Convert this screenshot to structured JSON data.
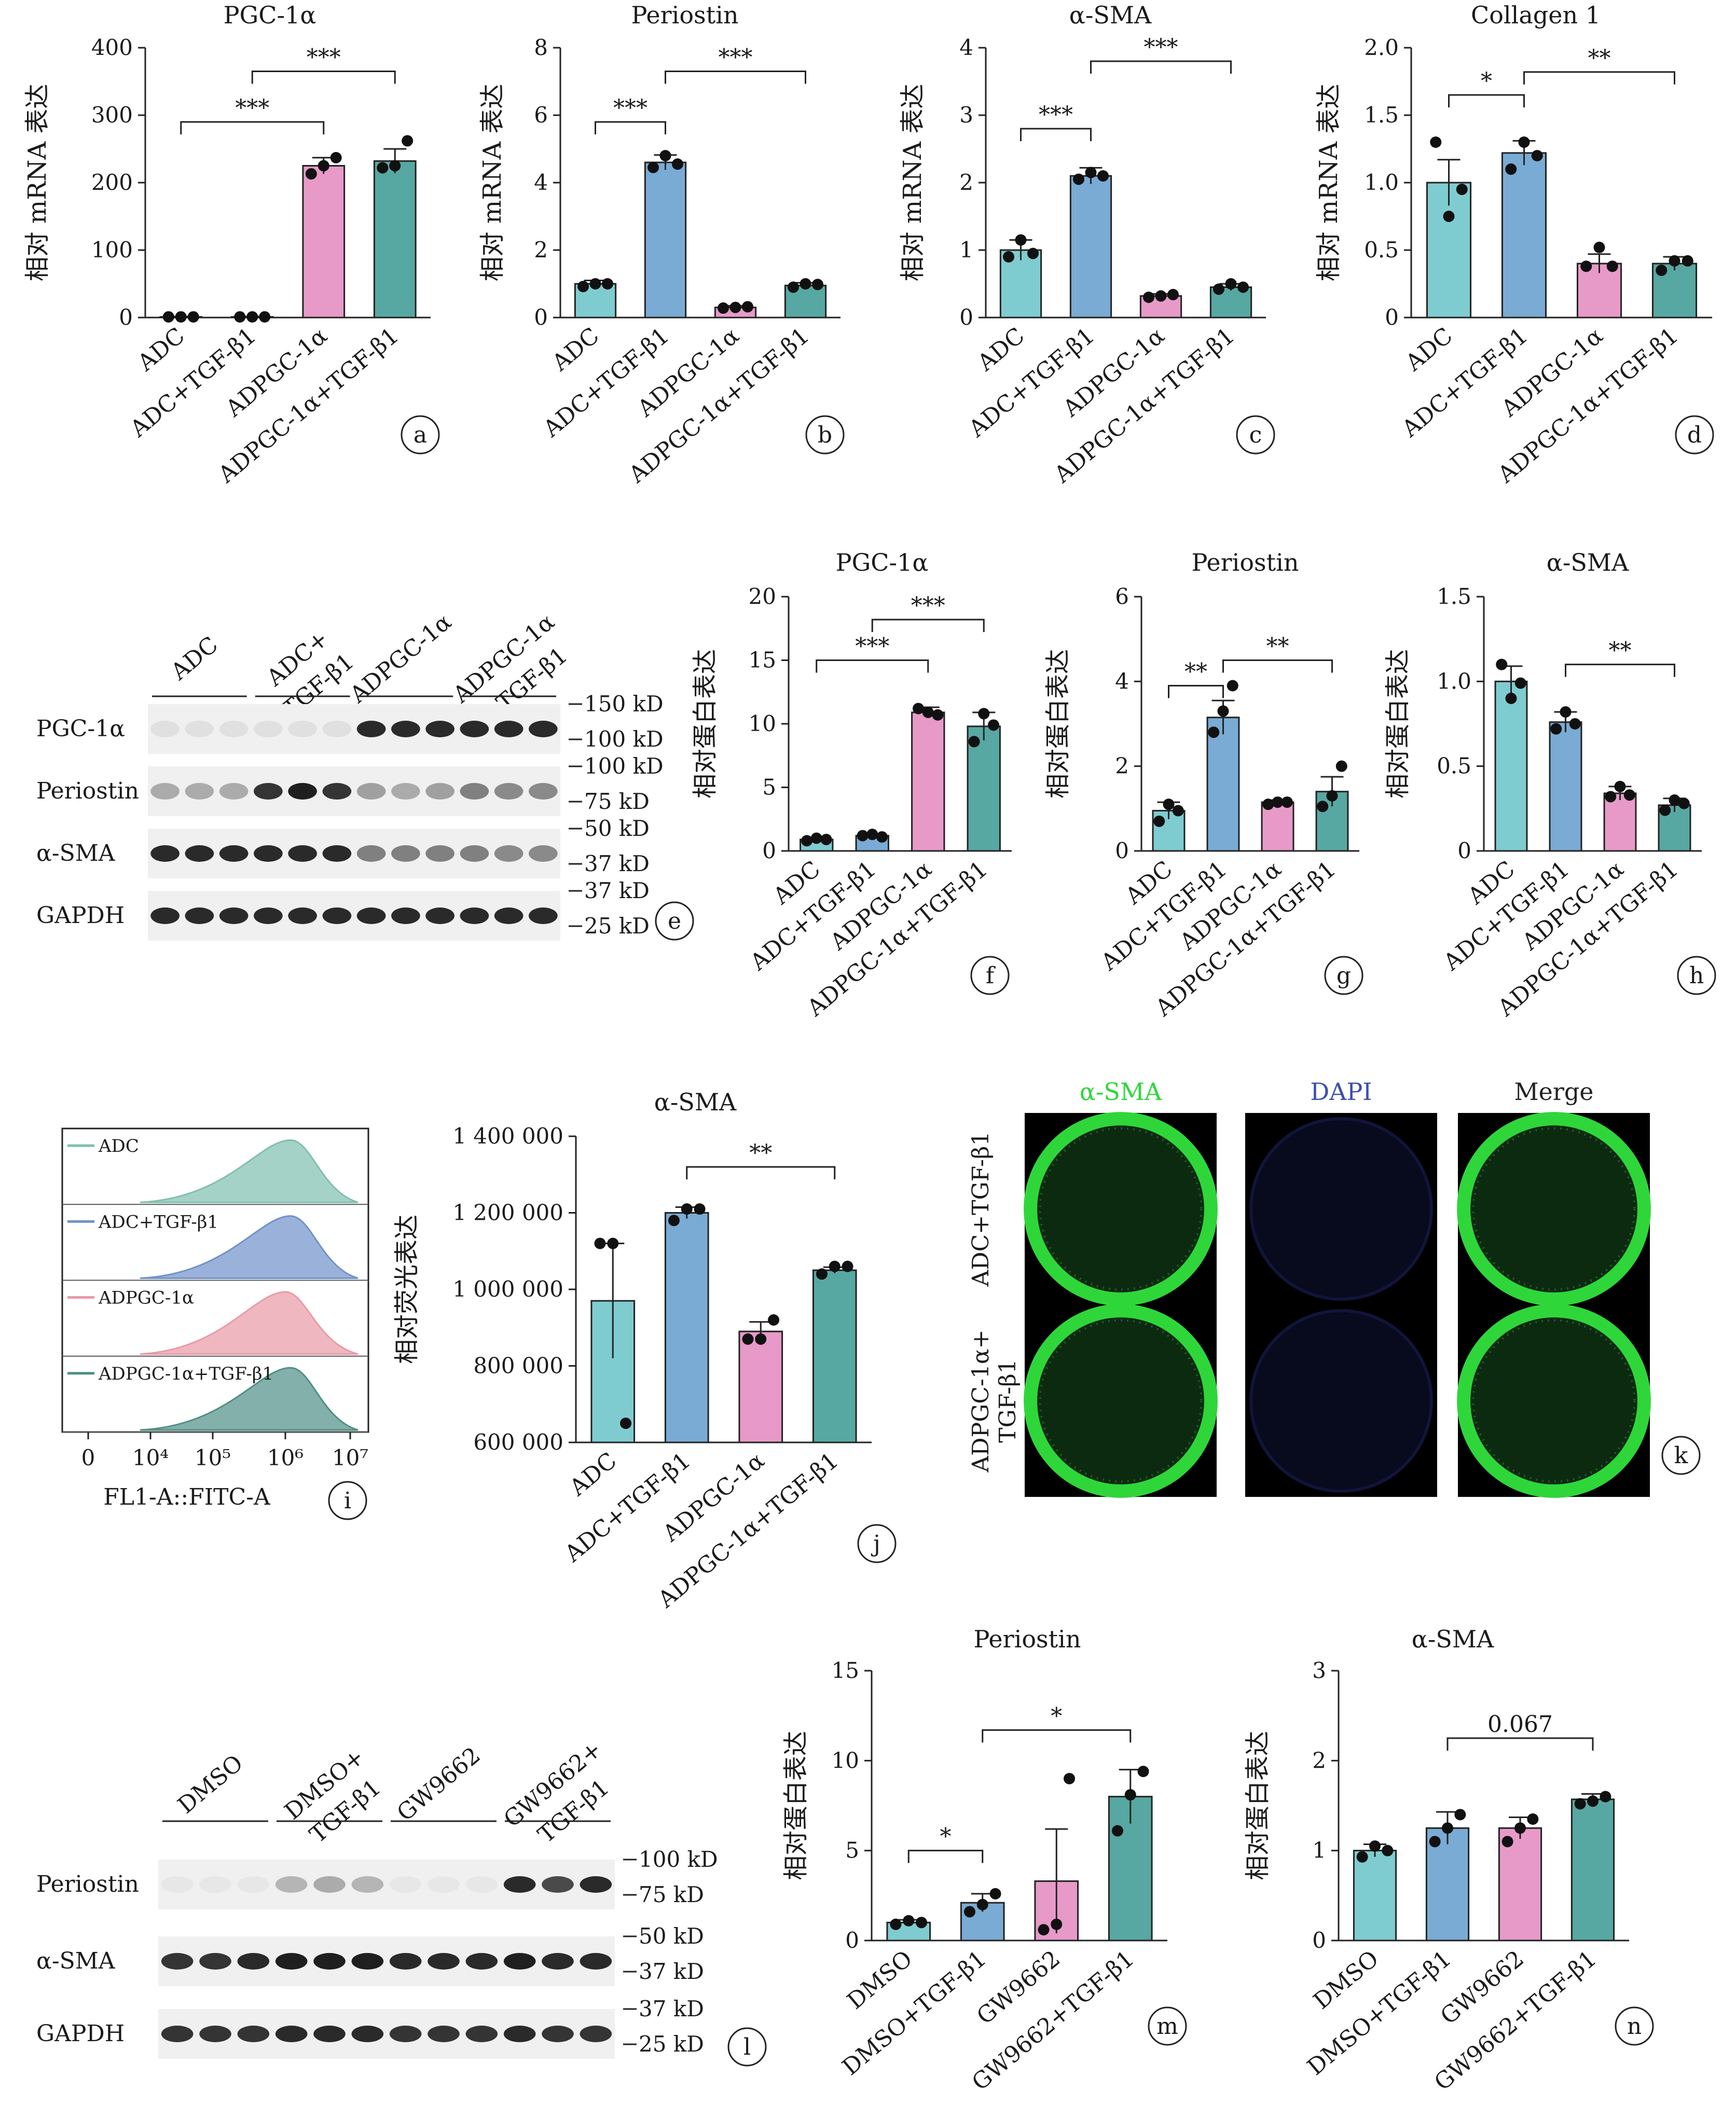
{
  "colors": {
    "ADC": "#7fccd0",
    "ADC+TGF-β1": "#79abd4",
    "ADPGC-1α": "#e79ac8",
    "ADPGC-1α+TGF-β1": "#57a8a2",
    "if_green": "#2fd63a",
    "dapi_blue": "#3a4fae"
  },
  "groups4": [
    "ADC",
    "ADC+TGF-β1",
    "ADPGC-1α",
    "ADPGC-1α+TGF-β1"
  ],
  "chart_data": [
    {
      "id": "a",
      "type": "bar",
      "title": "PGC-1α",
      "ylabel": "相对 mRNA 表达",
      "categories": [
        "ADC",
        "ADC+TGF-β1",
        "ADPGC-1α",
        "ADPGC-1α+TGF-β1"
      ],
      "values": [
        1,
        1,
        225,
        232
      ],
      "errors": [
        0.5,
        0.5,
        12,
        18
      ],
      "points": [
        [
          1,
          1,
          1
        ],
        [
          1,
          1,
          1
        ],
        [
          213,
          225,
          237
        ],
        [
          222,
          225,
          262
        ]
      ],
      "ylim": [
        0,
        400
      ],
      "yticks": [
        "0",
        "100",
        "200",
        "300",
        "400"
      ],
      "yticknums": [
        0,
        100,
        200,
        300,
        400
      ],
      "brackets": [
        {
          "from": 0,
          "to": 2,
          "y": 290,
          "label": "***"
        },
        {
          "from": 1,
          "to": 3,
          "y": 365,
          "label": "***"
        }
      ],
      "panel": "a"
    },
    {
      "id": "b",
      "type": "bar",
      "title": "Periostin",
      "ylabel": "相对 mRNA 表达",
      "categories": [
        "ADC",
        "ADC+TGF-β1",
        "ADPGC-1α",
        "ADPGC-1α+TGF-β1"
      ],
      "values": [
        1,
        4.6,
        0.3,
        0.95
      ],
      "errors": [
        0.1,
        0.22,
        0.05,
        0.08
      ],
      "points": [
        [
          0.92,
          1.0,
          1.0
        ],
        [
          4.45,
          4.8,
          4.55
        ],
        [
          0.28,
          0.3,
          0.32
        ],
        [
          0.9,
          1.0,
          0.98
        ]
      ],
      "ylim": [
        0,
        8
      ],
      "yticks": [
        "0",
        "2",
        "4",
        "6",
        "8"
      ],
      "yticknums": [
        0,
        2,
        4,
        6,
        8
      ],
      "brackets": [
        {
          "from": 0,
          "to": 1,
          "y": 5.8,
          "label": "***"
        },
        {
          "from": 1,
          "to": 3,
          "y": 7.3,
          "label": "***"
        }
      ],
      "panel": "b"
    },
    {
      "id": "c",
      "type": "bar",
      "title": "α-SMA",
      "ylabel": "相对 mRNA 表达",
      "categories": [
        "ADC",
        "ADC+TGF-β1",
        "ADPGC-1α",
        "ADPGC-1α+TGF-β1"
      ],
      "values": [
        1,
        2.1,
        0.32,
        0.45
      ],
      "errors": [
        0.15,
        0.12,
        0.03,
        0.05
      ],
      "points": [
        [
          0.9,
          1.15,
          0.95
        ],
        [
          2.05,
          2.15,
          2.1
        ],
        [
          0.3,
          0.32,
          0.34
        ],
        [
          0.42,
          0.5,
          0.45
        ]
      ],
      "ylim": [
        0,
        4
      ],
      "yticks": [
        "0",
        "1",
        "2",
        "3",
        "4"
      ],
      "yticknums": [
        0,
        1,
        2,
        3,
        4
      ],
      "brackets": [
        {
          "from": 0,
          "to": 1,
          "y": 2.8,
          "label": "***"
        },
        {
          "from": 1,
          "to": 3,
          "y": 3.8,
          "label": "***"
        }
      ],
      "panel": "c"
    },
    {
      "id": "d",
      "type": "bar",
      "title": "Collagen 1",
      "ylabel": "相对 mRNA 表达",
      "categories": [
        "ADC",
        "ADC+TGF-β1",
        "ADPGC-1α",
        "ADPGC-1α+TGF-β1"
      ],
      "values": [
        1,
        1.22,
        0.4,
        0.4
      ],
      "errors": [
        0.17,
        0.09,
        0.07,
        0.05
      ],
      "points": [
        [
          1.3,
          0.75,
          0.95
        ],
        [
          1.1,
          1.3,
          1.2
        ],
        [
          0.38,
          0.52,
          0.38
        ],
        [
          0.35,
          0.42,
          0.42
        ]
      ],
      "ylim": [
        0,
        2
      ],
      "yticks": [
        "0",
        "0.5",
        "1.0",
        "1.5",
        "2.0"
      ],
      "yticknums": [
        0,
        0.5,
        1,
        1.5,
        2
      ],
      "brackets": [
        {
          "from": 0,
          "to": 1,
          "y": 1.65,
          "label": "*"
        },
        {
          "from": 1,
          "to": 3,
          "y": 1.82,
          "label": "**"
        }
      ],
      "panel": "d"
    },
    {
      "id": "f",
      "type": "bar",
      "title": "PGC-1α",
      "ylabel": "相对蛋白表达",
      "categories": [
        "ADC",
        "ADC+TGF-β1",
        "ADPGC-1α",
        "ADPGC-1α+TGF-β1"
      ],
      "values": [
        0.9,
        1.2,
        10.9,
        9.8
      ],
      "errors": [
        0.15,
        0.15,
        0.4,
        1.1
      ],
      "points": [
        [
          0.8,
          1.0,
          0.9
        ],
        [
          1.2,
          1.3,
          1.1
        ],
        [
          11.2,
          10.9,
          10.7
        ],
        [
          8.6,
          10.8,
          9.9
        ]
      ],
      "ylim": [
        0,
        20
      ],
      "yticks": [
        "0",
        "5",
        "10",
        "15",
        "20"
      ],
      "yticknums": [
        0,
        5,
        10,
        15,
        20
      ],
      "brackets": [
        {
          "from": 0,
          "to": 2,
          "y": 15,
          "label": "***"
        },
        {
          "from": 1,
          "to": 3,
          "y": 18.2,
          "label": "***"
        }
      ],
      "panel": "f"
    },
    {
      "id": "g",
      "type": "bar",
      "title": "Periostin",
      "ylabel": "相对蛋白表达",
      "categories": [
        "ADC",
        "ADC+TGF-β1",
        "ADPGC-1α",
        "ADPGC-1α+TGF-β1"
      ],
      "values": [
        0.95,
        3.15,
        1.15,
        1.4
      ],
      "errors": [
        0.2,
        0.4,
        0.05,
        0.35
      ],
      "points": [
        [
          0.7,
          1.1,
          0.95
        ],
        [
          2.8,
          3.3,
          3.9
        ],
        [
          1.1,
          1.15,
          1.15
        ],
        [
          1.05,
          1.3,
          2.0
        ]
      ],
      "ylim": [
        0,
        6
      ],
      "yticks": [
        "0",
        "2",
        "4",
        "6"
      ],
      "yticknums": [
        0,
        2,
        4,
        6
      ],
      "brackets": [
        {
          "from": 0,
          "to": 1,
          "y": 3.9,
          "label": "**"
        },
        {
          "from": 1,
          "to": 3,
          "y": 4.5,
          "label": "**"
        }
      ],
      "panel": "g"
    },
    {
      "id": "h",
      "type": "bar",
      "title": "α-SMA",
      "ylabel": "相对蛋白表达",
      "categories": [
        "ADC",
        "ADC+TGF-β1",
        "ADPGC-1α",
        "ADPGC-1α+TGF-β1"
      ],
      "values": [
        1.0,
        0.76,
        0.34,
        0.27
      ],
      "errors": [
        0.09,
        0.06,
        0.04,
        0.04
      ],
      "points": [
        [
          1.1,
          0.9,
          0.99
        ],
        [
          0.72,
          0.82,
          0.75
        ],
        [
          0.32,
          0.38,
          0.33
        ],
        [
          0.24,
          0.3,
          0.28
        ]
      ],
      "ylim": [
        0,
        1.5
      ],
      "yticks": [
        "0",
        "0.5",
        "1.0",
        "1.5"
      ],
      "yticknums": [
        0,
        0.5,
        1,
        1.5
      ],
      "brackets": [
        {
          "from": 1,
          "to": 3,
          "y": 1.1,
          "label": "**"
        }
      ],
      "panel": "h"
    },
    {
      "id": "j",
      "type": "bar",
      "title": "α-SMA",
      "ylabel": "相对荧光表达",
      "categories": [
        "ADC",
        "ADC+TGF-β1",
        "ADPGC-1α",
        "ADPGC-1α+TGF-β1"
      ],
      "values": [
        970000,
        1200000,
        890000,
        1050000
      ],
      "errors": [
        150000,
        15000,
        25000,
        8000
      ],
      "points": [
        [
          1120000,
          1120000,
          650000
        ],
        [
          1180000,
          1210000,
          1210000
        ],
        [
          870000,
          870000,
          920000
        ],
        [
          1040000,
          1060000,
          1060000
        ]
      ],
      "ylim": [
        600000,
        1400000
      ],
      "yticks": [
        "600 000",
        "800 000",
        "1 000 000",
        "1 200 000",
        "1 400 000"
      ],
      "yticknums": [
        600000,
        800000,
        1000000,
        1200000,
        1400000
      ],
      "brackets": [
        {
          "from": 1,
          "to": 3,
          "y": 1320000,
          "label": "**"
        }
      ],
      "panel": "j"
    },
    {
      "id": "m",
      "type": "bar",
      "title": "Periostin",
      "ylabel": "相对蛋白表达",
      "categories": [
        "DMSO",
        "DMSO+TGF-β1",
        "GW9662",
        "GW9662+TGF-β1"
      ],
      "values": [
        1.0,
        2.1,
        3.3,
        8.0
      ],
      "errors": [
        0.15,
        0.5,
        2.9,
        1.5
      ],
      "points": [
        [
          0.9,
          1.1,
          1.0
        ],
        [
          1.6,
          2.0,
          2.6
        ],
        [
          0.6,
          0.9,
          9.0
        ],
        [
          6.1,
          8.1,
          9.4
        ]
      ],
      "ylim": [
        0,
        15
      ],
      "yticks": [
        "0",
        "5",
        "10",
        "15"
      ],
      "yticknums": [
        0,
        5,
        10,
        15
      ],
      "brackets": [
        {
          "from": 0,
          "to": 1,
          "y": 5,
          "label": "*"
        },
        {
          "from": 1,
          "to": 3,
          "y": 11.7,
          "label": "*"
        }
      ],
      "panel": "m",
      "colors": [
        "#7fccd0",
        "#79abd4",
        "#e79ac8",
        "#57a8a2"
      ]
    },
    {
      "id": "n",
      "type": "bar",
      "title": "α-SMA",
      "ylabel": "相对蛋白表达",
      "categories": [
        "DMSO",
        "DMSO+TGF-β1",
        "GW9662",
        "GW9662+TGF-β1"
      ],
      "values": [
        1.0,
        1.25,
        1.25,
        1.57
      ],
      "errors": [
        0.07,
        0.18,
        0.12,
        0.06
      ],
      "points": [
        [
          0.93,
          1.05,
          1.0
        ],
        [
          1.1,
          1.25,
          1.4
        ],
        [
          1.1,
          1.25,
          1.35
        ],
        [
          1.52,
          1.55,
          1.6
        ]
      ],
      "ylim": [
        0,
        3
      ],
      "yticks": [
        "0",
        "1",
        "2",
        "3"
      ],
      "yticknums": [
        0,
        1,
        2,
        3
      ],
      "brackets": [
        {
          "from": 1,
          "to": 3,
          "y": 2.25,
          "label": "0.067"
        }
      ],
      "panel": "n",
      "colors": [
        "#7fccd0",
        "#79abd4",
        "#e79ac8",
        "#57a8a2"
      ]
    }
  ],
  "westernE": {
    "groups": [
      "ADC",
      "ADC+\nTGF-β1",
      "ADPGC-1α",
      "ADPGC-1α\n+TGF-β1"
    ],
    "rows": [
      {
        "name": "PGC-1α",
        "mw_top": "150 kD",
        "mw_bot": "100 kD",
        "pattern": [
          0.05,
          0.05,
          0.05,
          0.05,
          0.05,
          0.05,
          0.9,
          0.9,
          0.9,
          0.9,
          0.9,
          0.9
        ]
      },
      {
        "name": "Periostin",
        "mw_top": "100 kD",
        "mw_bot": "75 kD",
        "pattern": [
          0.3,
          0.3,
          0.3,
          0.85,
          0.95,
          0.85,
          0.35,
          0.3,
          0.35,
          0.5,
          0.45,
          0.45
        ]
      },
      {
        "name": "α-SMA",
        "mw_top": "50 kD",
        "mw_bot": "37 kD",
        "pattern": [
          0.9,
          0.9,
          0.9,
          0.9,
          0.9,
          0.9,
          0.5,
          0.5,
          0.5,
          0.5,
          0.45,
          0.45
        ]
      },
      {
        "name": "GAPDH",
        "mw_top": "37 kD",
        "mw_bot": "25 kD",
        "pattern": [
          0.9,
          0.9,
          0.9,
          0.9,
          0.9,
          0.9,
          0.9,
          0.9,
          0.9,
          0.9,
          0.9,
          0.9
        ]
      }
    ],
    "panel": "e"
  },
  "westernL": {
    "groups": [
      "DMSO",
      "DMSO+\nTGF-β1",
      "GW9662",
      "GW9662+\nTGF-β1"
    ],
    "rows": [
      {
        "name": "Periostin",
        "mw_top": "100 kD",
        "mw_bot": "75 kD",
        "pattern": [
          0.02,
          0.02,
          0.02,
          0.25,
          0.3,
          0.25,
          0.02,
          0.02,
          0.02,
          0.9,
          0.75,
          0.9
        ]
      },
      {
        "name": "α-SMA",
        "mw_top": "50 kD",
        "mw_bot": "37 kD",
        "pattern": [
          0.85,
          0.85,
          0.9,
          0.95,
          0.95,
          0.95,
          0.9,
          0.9,
          0.9,
          0.95,
          0.9,
          0.9
        ]
      },
      {
        "name": "GAPDH",
        "mw_top": "37 kD",
        "mw_bot": "25 kD",
        "pattern": [
          0.85,
          0.85,
          0.85,
          0.9,
          0.9,
          0.9,
          0.85,
          0.85,
          0.85,
          0.9,
          0.85,
          0.85
        ]
      }
    ],
    "panel": "l"
  },
  "flowI": {
    "legends": [
      "ADC",
      "ADC+TGF-β1",
      "ADPGC-1α",
      "ADPGC-1α+TGF-β1"
    ],
    "colors": [
      "#7fbfae",
      "#6f92c9",
      "#e89aa6",
      "#4e8f86"
    ],
    "xticks": [
      "0",
      "10⁴",
      "10⁵",
      "10⁶",
      "10⁷"
    ],
    "xlabel": "FL1-A::FITC-A",
    "panel": "i"
  },
  "ifK": {
    "cols": [
      "α-SMA",
      "DAPI",
      "Merge"
    ],
    "rows": [
      "ADC+TGF-β1",
      "ADPGC-1α+\nTGF-β1"
    ],
    "panel": "k"
  }
}
